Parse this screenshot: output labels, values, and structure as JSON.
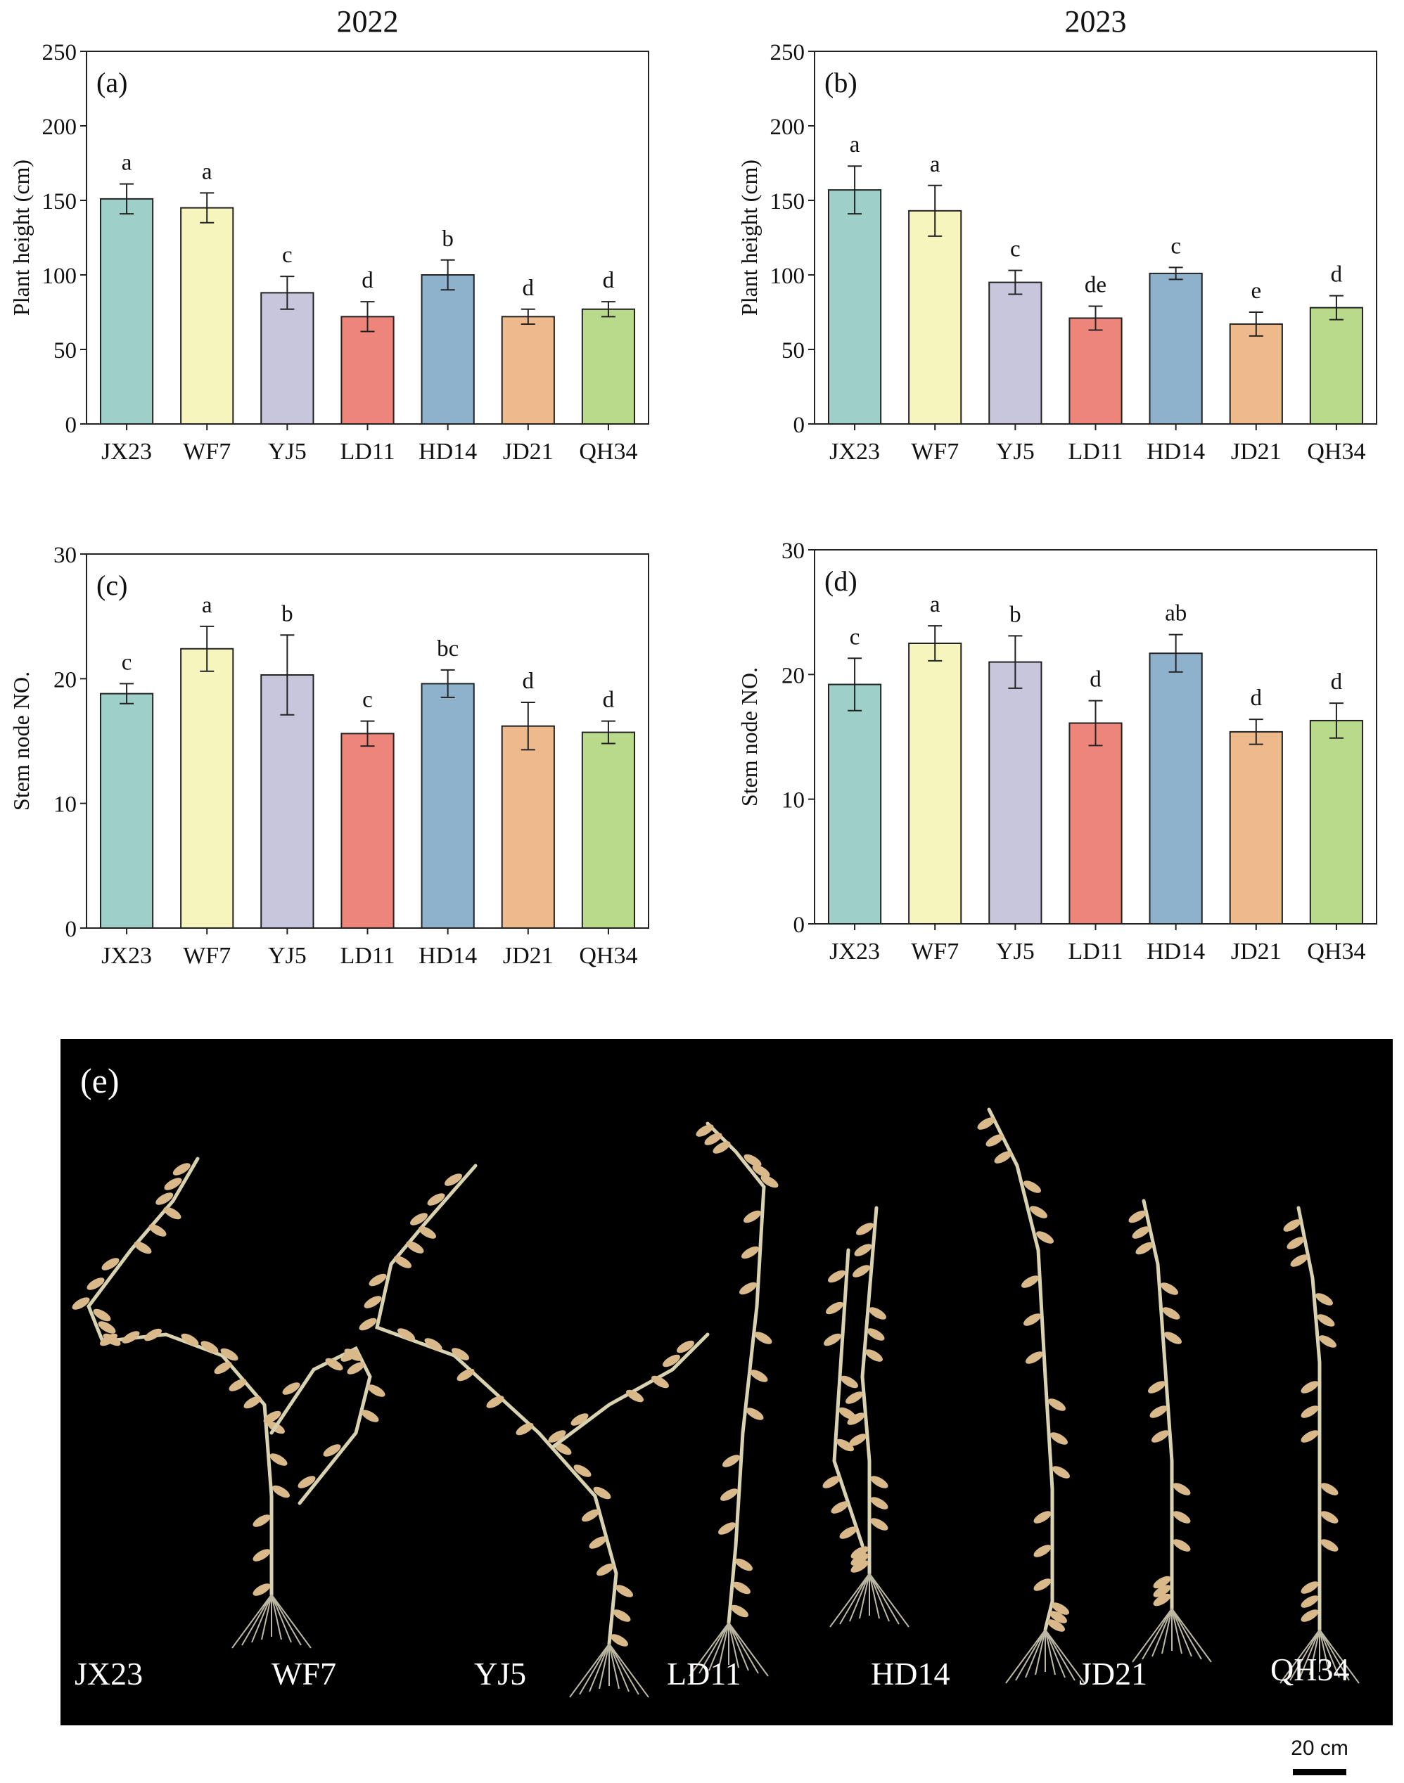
{
  "chart_data": [
    {
      "panel": "(a)",
      "type": "bar",
      "header": "2022",
      "ylabel": "Plant height (cm)",
      "ylim": [
        0,
        250
      ],
      "yticks": [
        0,
        50,
        100,
        150,
        200,
        250
      ],
      "categories": [
        "JX23",
        "WF7",
        "YJ5",
        "LD11",
        "HD14",
        "JD21",
        "QH34"
      ],
      "values": [
        151,
        145,
        88,
        72,
        100,
        72,
        77
      ],
      "errors": [
        10,
        10,
        11,
        10,
        10,
        5,
        5
      ],
      "letters": [
        "a",
        "a",
        "c",
        "d",
        "b",
        "d",
        "d"
      ],
      "colors": [
        "#9ecfc8",
        "#f7f5be",
        "#c8c6dc",
        "#ee857a",
        "#8fb2cc",
        "#eeba8c",
        "#b9d98b"
      ]
    },
    {
      "panel": "(b)",
      "type": "bar",
      "header": "2023",
      "ylabel": "Plant height (cm)",
      "ylim": [
        0,
        250
      ],
      "yticks": [
        0,
        50,
        100,
        150,
        200,
        250
      ],
      "categories": [
        "JX23",
        "WF7",
        "YJ5",
        "LD11",
        "HD14",
        "JD21",
        "QH34"
      ],
      "values": [
        157,
        143,
        95,
        71,
        101,
        67,
        78
      ],
      "errors": [
        16,
        17,
        8,
        8,
        4,
        8,
        8
      ],
      "letters": [
        "a",
        "a",
        "c",
        "de",
        "c",
        "e",
        "d"
      ],
      "colors": [
        "#9ecfc8",
        "#f7f5be",
        "#c8c6dc",
        "#ee857a",
        "#8fb2cc",
        "#eeba8c",
        "#b9d98b"
      ]
    },
    {
      "panel": "(c)",
      "type": "bar",
      "header": "",
      "ylabel": "Stem node NO.",
      "ylim": [
        0,
        30
      ],
      "yticks": [
        0,
        10,
        20,
        30
      ],
      "categories": [
        "JX23",
        "WF7",
        "YJ5",
        "LD11",
        "HD14",
        "JD21",
        "QH34"
      ],
      "values": [
        18.8,
        22.4,
        20.3,
        15.6,
        19.6,
        16.2,
        15.7
      ],
      "errors": [
        0.8,
        1.8,
        3.2,
        1.0,
        1.1,
        1.9,
        0.9
      ],
      "letters": [
        "c",
        "a",
        "b",
        "c",
        "bc",
        "d",
        "d"
      ],
      "colors": [
        "#9ecfc8",
        "#f7f5be",
        "#c8c6dc",
        "#ee857a",
        "#8fb2cc",
        "#eeba8c",
        "#b9d98b"
      ]
    },
    {
      "panel": "(d)",
      "type": "bar",
      "header": "",
      "ylabel": "Stem node NO.",
      "ylim": [
        0,
        30
      ],
      "yticks": [
        0,
        10,
        20,
        30
      ],
      "categories": [
        "JX23",
        "WF7",
        "YJ5",
        "LD11",
        "HD14",
        "JD21",
        "QH34"
      ],
      "values": [
        19.2,
        22.5,
        21.0,
        16.1,
        21.7,
        15.4,
        16.3
      ],
      "errors": [
        2.1,
        1.4,
        2.1,
        1.8,
        1.5,
        1.0,
        1.4
      ],
      "letters": [
        "c",
        "a",
        "b",
        "d",
        "ab",
        "d",
        "d"
      ],
      "colors": [
        "#9ecfc8",
        "#f7f5be",
        "#c8c6dc",
        "#ee857a",
        "#8fb2cc",
        "#eeba8c",
        "#b9d98b"
      ]
    }
  ],
  "photo": {
    "label": "(e)",
    "plants": [
      "JX23",
      "WF7",
      "YJ5",
      "LD11",
      "HD14",
      "JD21",
      "QH34"
    ],
    "scale_bar": "20 cm"
  }
}
